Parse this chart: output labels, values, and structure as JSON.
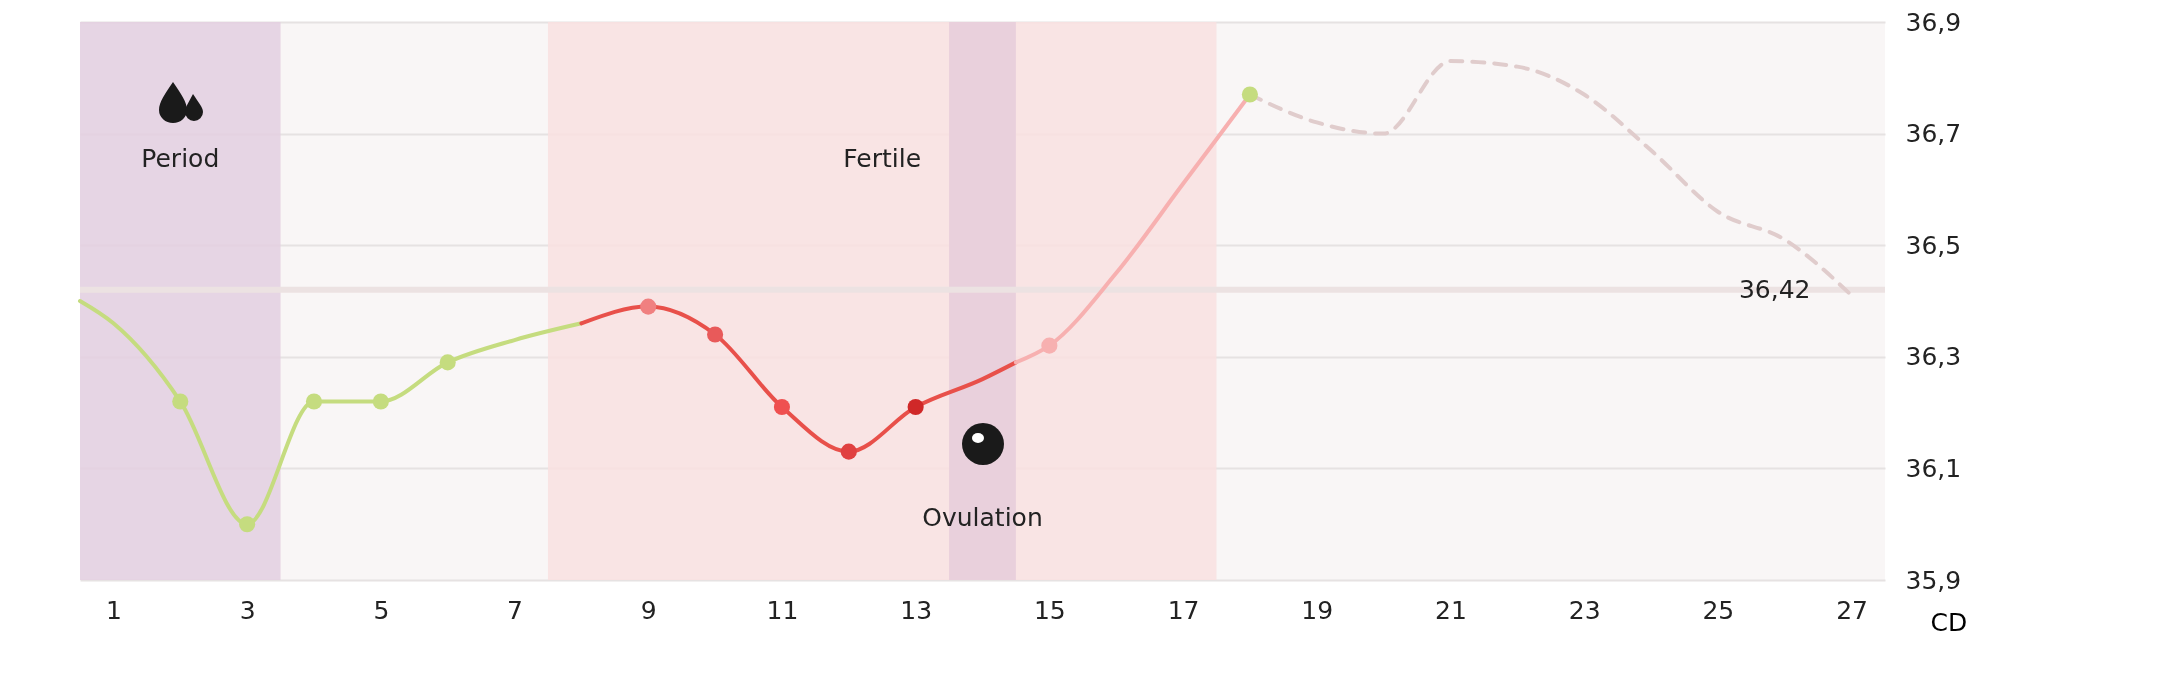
{
  "chart_data": {
    "type": "line",
    "xlabel": "CD",
    "xlim": [
      0.5,
      27.5
    ],
    "xticks": [
      1,
      3,
      5,
      7,
      9,
      11,
      13,
      15,
      17,
      19,
      21,
      23,
      25,
      27
    ],
    "ylim": [
      35.9,
      36.9
    ],
    "yticks": [
      {
        "value": 35.9,
        "label": "35,9"
      },
      {
        "value": 36.1,
        "label": "36,1"
      },
      {
        "value": 36.3,
        "label": "36,3"
      },
      {
        "value": 36.5,
        "label": "36,5"
      },
      {
        "value": 36.7,
        "label": "36,7"
      },
      {
        "value": 36.9,
        "label": "36,9"
      }
    ],
    "grid": "y",
    "series": [
      {
        "type": "line",
        "color": "#c5dc7f",
        "x": [
          0.5,
          1,
          2,
          3,
          4,
          5,
          6,
          7,
          8
        ],
        "values": [
          36.4,
          36.36,
          36.22,
          36.0,
          36.22,
          36.22,
          36.29,
          36.33,
          36.36
        ]
      },
      {
        "type": "line",
        "color": "#e8504a",
        "x": [
          8,
          9,
          10,
          11,
          12,
          13,
          14,
          14.5
        ],
        "values": [
          36.36,
          36.39,
          36.34,
          36.21,
          36.13,
          36.21,
          36.26,
          36.29
        ]
      },
      {
        "type": "line",
        "color": "#f7b0b0",
        "x": [
          14.5,
          15,
          16,
          17,
          18
        ],
        "values": [
          36.29,
          36.32,
          36.45,
          36.61,
          36.77
        ]
      },
      {
        "type": "line",
        "color": "#e0cccc",
        "line_style": "dashed",
        "x": [
          18,
          19,
          20,
          21,
          22,
          23,
          24,
          25,
          26,
          27
        ],
        "values": [
          36.77,
          36.72,
          36.7,
          36.83,
          36.82,
          36.77,
          36.67,
          36.56,
          36.51,
          36.41
        ]
      },
      {
        "type": "scatter",
        "x": [
          2,
          3,
          4,
          5,
          6,
          9,
          10,
          11,
          12,
          13,
          15,
          18
        ],
        "values": [
          36.22,
          36.0,
          36.22,
          36.22,
          36.29,
          36.39,
          36.34,
          36.21,
          36.13,
          36.21,
          36.32,
          36.77
        ],
        "colors": [
          "#c5dc7f",
          "#c5dc7f",
          "#c5dc7f",
          "#c5dc7f",
          "#c5dc7f",
          "#f08080",
          "#e85a5a",
          "#ef5050",
          "#e04040",
          "#d02828",
          "#f7b0b0",
          "#c5dc7f"
        ]
      }
    ],
    "ref_lines": [
      {
        "axis": "y",
        "value": 36.42,
        "label": "36,42",
        "color": "#ece2e2"
      }
    ],
    "bands": [
      {
        "axis": "x",
        "from": 0.5,
        "to": 3.5,
        "label": "Period",
        "color": "#e3cfe0"
      },
      {
        "axis": "x",
        "from": 7.5,
        "to": 17.5,
        "label": "Fertile",
        "color": "#f9e1e1"
      },
      {
        "axis": "x",
        "from": 13.5,
        "to": 14.5,
        "label": "Ovulation",
        "color": "#e6cdda"
      }
    ]
  }
}
